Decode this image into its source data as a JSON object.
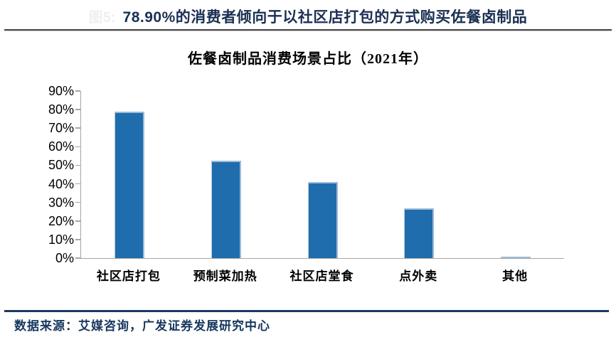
{
  "header": {
    "figure_label": "图5:",
    "title": "78.90%的消费者倾向于以社区店打包的方式购买佐餐卤制品"
  },
  "chart_data": {
    "type": "bar",
    "title": "佐餐卤制品消费场景占比（2021年）",
    "categories": [
      "社区店打包",
      "预制菜加热",
      "社区店堂食",
      "点外卖",
      "其他"
    ],
    "values": [
      78.9,
      52.5,
      41.0,
      26.8,
      0.6
    ],
    "unit": "%",
    "xlabel": "",
    "ylabel": "",
    "ylim": [
      0,
      90
    ],
    "ytick_step": 10,
    "ytick_labels": [
      "0%",
      "10%",
      "20%",
      "30%",
      "40%",
      "50%",
      "60%",
      "70%",
      "80%",
      "90%"
    ],
    "grid": false,
    "legend": "none",
    "bar_color": "#1f6dad",
    "bar_highlight_color": "#9dbcd8",
    "axis_color": "#a6a6a6"
  },
  "footer": {
    "source": "数据来源：艾媒咨询，广发证券发展研究中心"
  },
  "colors": {
    "header_title": "#1a2f52",
    "header_rule": "#474747",
    "source_rule": "#1d3a5f",
    "source_text": "#17375e"
  }
}
